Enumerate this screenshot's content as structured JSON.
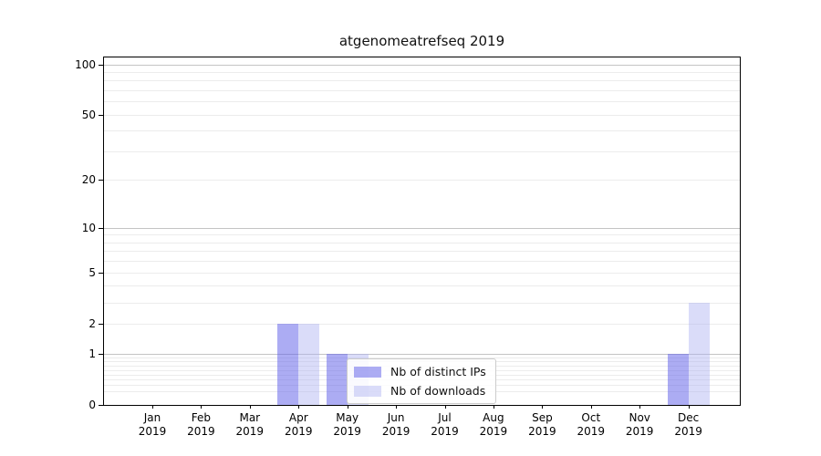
{
  "figure": {
    "title": "atgenomeatrefseq 2019",
    "background_color": "#ffffff",
    "spine_color": "#000000"
  },
  "chart_data": {
    "type": "bar",
    "title": "atgenomeatrefseq 2019",
    "categories": [
      "Jan",
      "Feb",
      "Mar",
      "Apr",
      "May",
      "Jun",
      "Jul",
      "Aug",
      "Sep",
      "Oct",
      "Nov",
      "Dec"
    ],
    "x_year": "2019",
    "series": [
      {
        "name": "Nb of distinct IPs",
        "color": "rgba(95,95,232,0.52)",
        "values": [
          0,
          0,
          0,
          2,
          1,
          0,
          0,
          0,
          0,
          0,
          0,
          1
        ]
      },
      {
        "name": "Nb of downloads",
        "color": "rgba(172,178,242,0.45)",
        "values": [
          0,
          0,
          0,
          2,
          1,
          0,
          0,
          0,
          0,
          0,
          0,
          3
        ]
      }
    ],
    "xlabel": "",
    "ylabel": "",
    "y_axis": {
      "scale": "log1p",
      "ticks": [
        0,
        1,
        2,
        5,
        10,
        20,
        50,
        100
      ],
      "ylim": [
        0,
        110.5
      ],
      "major_gridlines": [
        1,
        10,
        100
      ],
      "minor_gridlines": [
        0.2,
        0.3,
        0.4,
        0.5,
        0.6,
        0.7,
        0.8,
        0.9,
        2,
        5,
        3,
        4,
        6,
        7,
        8,
        9,
        20,
        50,
        30,
        40,
        60,
        70,
        80,
        90
      ],
      "major_grid_color": "#c4c4c4",
      "minor_grid_color": "#ececec"
    },
    "legend": {
      "position": "lower-center",
      "entries": [
        "Nb of distinct IPs",
        "Nb of downloads"
      ]
    },
    "grid": true
  }
}
